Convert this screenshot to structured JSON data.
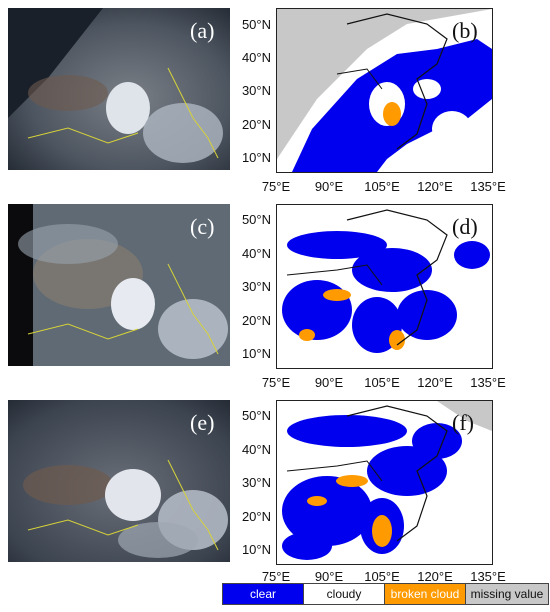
{
  "panels": [
    {
      "label": "(a)"
    },
    {
      "label": "(b)"
    },
    {
      "label": "(c)"
    },
    {
      "label": "(d)"
    },
    {
      "label": "(e)"
    },
    {
      "label": "(f)"
    }
  ],
  "y_ticks": [
    "50°N",
    "40°N",
    "30°N",
    "20°N",
    "10°N"
  ],
  "x_ticks": [
    "75°E",
    "90°E",
    "105°E",
    "120°E",
    "135°E"
  ],
  "legend": [
    {
      "label": "clear",
      "color": "#0000ee",
      "text_color": "#ffffff"
    },
    {
      "label": "cloudy",
      "color": "#ffffff",
      "text_color": "#111111"
    },
    {
      "label": "broken cloud",
      "color": "#ff9a00",
      "text_color": "#ffffff"
    },
    {
      "label": "missing value",
      "color": "#c8c8c8",
      "text_color": "#111111"
    }
  ]
}
